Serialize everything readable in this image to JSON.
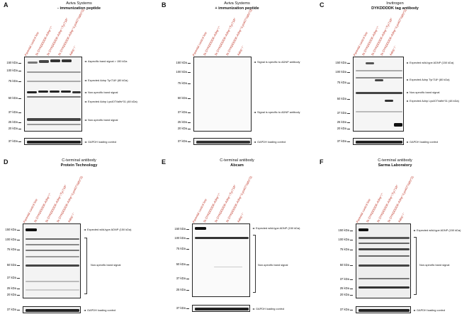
{
  "panels": {
    "A": {
      "label": "A",
      "title_line1": "Aviva Systems",
      "title_line2": "- immunization peptide",
      "lanes": [
        "Parental control line",
        "3x DYKDDDDK-Adnp⁺/⁺",
        "3x DYKDDDDK-Adnp⁺/Tyr718*",
        "3x DYKDDDDK-Adnp⁺/Lys407Valfs*31",
        "Adnp⁻/⁻"
      ],
      "mw_main": [
        "150 kDa",
        "100 kDa",
        "75 kDa",
        "50 kDa",
        "37 kDa",
        "25 kDa",
        "20 kDa"
      ],
      "mw_loading": "37 kDa",
      "annotations": [
        "Aspecific band signal > 150 kDa",
        "Expected Adnp Tyr718* (80 kDa)",
        "Non-specific band signal",
        "Expected Adnp Lys407Valfs*31 (48 kDa)",
        "Non-specific band signal"
      ],
      "loading_label": "GAPDH loading control"
    },
    "B": {
      "label": "B",
      "title_line1": "Aviva Systems",
      "title_line2": "+ immunization peptide",
      "lanes": [
        "Parental control line",
        "3x DYKDDDDK-Adnp⁺/⁺",
        "3x DYKDDDDK-Adnp⁺/Tyr718*",
        "3x DYKDDDDK-Adnp⁺/Lys407Valfs*31",
        "Adnp⁻/⁻"
      ],
      "mw_main": [
        "150 kDa",
        "100 kDa",
        "75 kDa",
        "50 kDa",
        "37 kDa",
        "25 kDa",
        "20 kDa"
      ],
      "mw_loading": "37 kDa",
      "annotations": [
        "Signal is specific to ADNP antibody",
        "Signal is specific to ADNP antibody"
      ],
      "loading_label": "GAPDH loading control"
    },
    "C": {
      "label": "C",
      "title_line1": "Invitrogen",
      "title_line2": "DYKDDDDK tag antibody",
      "lanes": [
        "Parental control line",
        "3x DYKDDDDK-Adnp⁺/⁺",
        "3x DYKDDDDK-Adnp⁺/Tyr718*",
        "3x DYKDDDDK-Adnp⁺/Lys407Valfs*31",
        "Adnp⁻/⁻"
      ],
      "mw_main": [
        "150 kDa",
        "100 kDa",
        "75 kDa",
        "50 kDa",
        "37 kDa",
        "25 kDa",
        "20 kDa"
      ],
      "mw_loading": "37 kDa",
      "annotations": [
        "Expected wild-type ADNP (150 kDa)",
        "Expected Adnp Tyr718* (80 kDa)",
        "Non-specific band signal",
        "Expected Adnp Lys407Valfs*31 (48 kDa)"
      ],
      "loading_label": "GAPDH loading control"
    },
    "D": {
      "label": "D",
      "title_line1": "C-terminal antibody",
      "title_line2": "Protein Technology",
      "lanes": [
        "Parental control line",
        "3x DYKDDDDK-Adnp⁺/⁺",
        "3x DYKDDDDK-Adnp⁺/Tyr718*",
        "3x DYKDDDDK-Adnp⁺/Lys407Valfs*31",
        "Adnp⁻/⁻"
      ],
      "mw_main": [
        "150 kDa",
        "100 kDa",
        "75 kDa",
        "50 kDa",
        "37 kDa",
        "25 kDa",
        "20 kDa"
      ],
      "mw_loading": "37 kDa",
      "annotations": [
        "Expected wild-type ADNP (150 kDa)",
        "Non-specific band signal"
      ],
      "loading_label": "GAPDH loading control"
    },
    "E": {
      "label": "E",
      "title_line1": "C-terminal antibody",
      "title_line2": "Abcam",
      "lanes": [
        "Parental control line",
        "3x DYKDDDDK-Adnp⁺/⁺",
        "3x DYKDDDDK-Adnp⁺/Tyr718*",
        "3x DYKDDDDK-Adnp⁺/Lys407Valfs*31",
        "Adnp⁻/⁻"
      ],
      "mw_main": [
        "150 kDa",
        "100 kDa",
        "75 kDa",
        "50 kDa",
        "37 kDa",
        "25 kDa"
      ],
      "mw_loading": "37 kDa",
      "annotations": [
        "Expected wild-type ADNP (150 kDa)",
        "Non-specific band signal"
      ],
      "loading_label": "GAPDH loading control"
    },
    "F": {
      "label": "F",
      "title_line1": "C-terminal antibody",
      "title_line2": "Sarma Laboratory",
      "lanes": [
        "Parental control line",
        "3x DYKDDDDK-Adnp⁺/⁺",
        "3x DYKDDDDK-Adnp⁺/Tyr718*",
        "3x DYKDDDDK-Adnp⁺/Lys407Valfs*31",
        "Adnp⁻/⁻"
      ],
      "mw_main": [
        "150 kDa",
        "100 kDa",
        "75 kDa",
        "50 kDa",
        "37 kDa",
        "25 kDa",
        "20 kDa"
      ],
      "mw_loading": "37 kDa",
      "annotations": [
        "Expected wild-type ADNP (150 kDa)",
        "Non-specific band signal"
      ],
      "loading_label": "GAPDH loading control"
    }
  },
  "colors": {
    "lane_label": "#c0392b",
    "band": "#1a1a1a"
  }
}
